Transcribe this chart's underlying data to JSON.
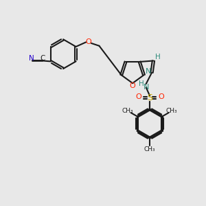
{
  "background_color": "#e8e8e8",
  "bond_color": "#1a1a1a",
  "atom_colors": {
    "N": "#2e8b7a",
    "O": "#ff2200",
    "S": "#ccaa00",
    "C_label": "#1a1a1a",
    "H": "#2e8b7a",
    "CN_N": "#2200cc"
  },
  "figsize": [
    3.0,
    3.0
  ],
  "dpi": 100,
  "xlim": [
    0,
    10
  ],
  "ylim": [
    0,
    10
  ]
}
